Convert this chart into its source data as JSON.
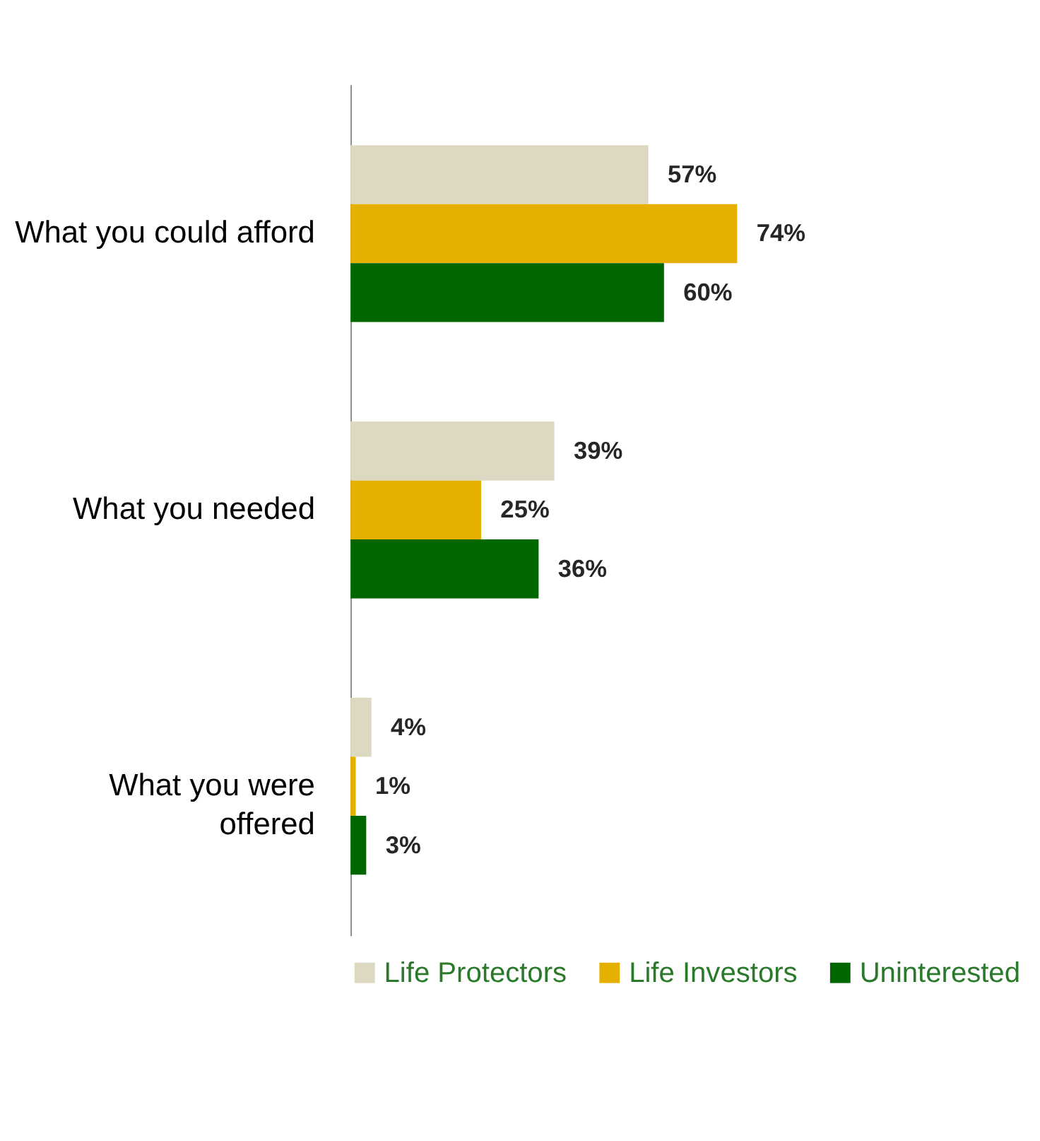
{
  "chart_data": {
    "type": "bar",
    "orientation": "horizontal",
    "categories": [
      "What you could afford",
      "What you needed",
      "What you were\noffered"
    ],
    "series": [
      {
        "name": "Life Protectors",
        "color": "#ddd8c2",
        "values": [
          57,
          39,
          4
        ],
        "value_labels": [
          "57%",
          "39%",
          "4%"
        ]
      },
      {
        "name": "Life Investors",
        "color": "#e6b000",
        "values": [
          74,
          25,
          1
        ],
        "value_labels": [
          "74%",
          "25%",
          "1%"
        ]
      },
      {
        "name": "Uninterested",
        "color": "#006600",
        "values": [
          60,
          36,
          3
        ],
        "value_labels": [
          "60%",
          "36%",
          "3%"
        ]
      }
    ],
    "legend": "bottom",
    "grid": false
  }
}
